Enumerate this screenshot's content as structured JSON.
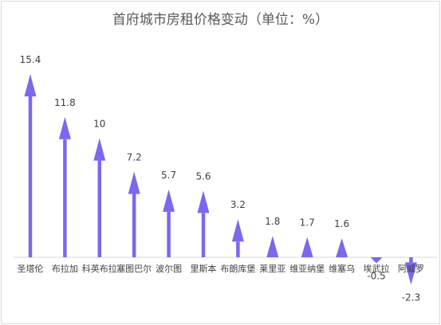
{
  "chart_data": {
    "type": "bar",
    "title": "首府城市房租价格变动（单位：%）",
    "categories": [
      "圣塔伦",
      "布拉加",
      "科英布拉",
      "塞图巴尔",
      "波尔图",
      "里斯本",
      "布朗库堡",
      "莱里亚",
      "维亚纳堡",
      "维塞乌",
      "埃武拉",
      "阿威罗"
    ],
    "values": [
      15.4,
      11.8,
      10,
      7.2,
      5.7,
      5.6,
      3.2,
      1.8,
      1.7,
      1.6,
      -0.5,
      -2.3
    ],
    "value_labels": [
      "15.4",
      "11.8",
      "10",
      "7.2",
      "5.7",
      "5.6",
      "3.2",
      "1.8",
      "1.7",
      "1.6",
      "-0.5",
      "-2.3"
    ],
    "marker_style": "arrow",
    "xlabel": "",
    "ylabel": "",
    "grid": false,
    "legend": "none",
    "color": "#7b68ee"
  }
}
